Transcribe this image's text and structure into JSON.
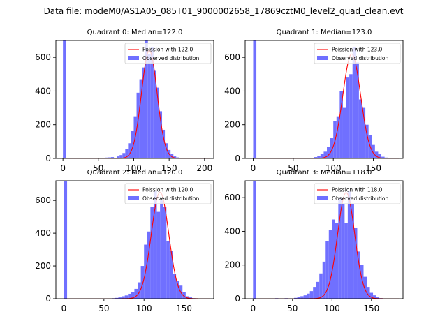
{
  "figure": {
    "suptitle": "Data file: modeM0/AS1A05_085T01_9000002658_17869cztM0_level2_quad_clean.evt"
  },
  "chart_data": [
    {
      "type": "bar",
      "title": "Quadrant 0: Median=122.0",
      "median": 122.0,
      "xlim": [
        -10,
        213
      ],
      "ylim": [
        0,
        700
      ],
      "xticks": [
        0,
        50,
        100,
        150,
        200
      ],
      "yticks": [
        0,
        200,
        400,
        600
      ],
      "legend_placement": "top-right",
      "legend": [
        {
          "label": "Poission with 122.0",
          "kind": "line",
          "color": "#ff0000"
        },
        {
          "label": "Observed distribution",
          "kind": "patch",
          "color": "#7070ff"
        }
      ],
      "histogram": {
        "bin_width": 4,
        "bin_starts": [
          0,
          56,
          60,
          64,
          68,
          72,
          76,
          80,
          84,
          88,
          92,
          96,
          100,
          104,
          108,
          112,
          116,
          120,
          124,
          128,
          132,
          136,
          140,
          144,
          148,
          152,
          156,
          160,
          164
        ],
        "counts": [
          700,
          3,
          5,
          6,
          8,
          4,
          12,
          20,
          32,
          55,
          90,
          165,
          250,
          390,
          470,
          540,
          700,
          620,
          660,
          520,
          420,
          280,
          170,
          90,
          50,
          25,
          12,
          6,
          3
        ]
      },
      "poisson_curve": {
        "mean": 122.0,
        "peak": 640,
        "x_range": [
          0,
          208
        ]
      }
    },
    {
      "type": "bar",
      "title": "Quadrant 1: Median=123.0",
      "median": 123.0,
      "xlim": [
        -10,
        187
      ],
      "ylim": [
        0,
        700
      ],
      "xticks": [
        0,
        50,
        100,
        150
      ],
      "yticks": [
        0,
        200,
        400,
        600
      ],
      "legend_placement": "top-right",
      "legend": [
        {
          "label": "Poission with 123.0",
          "kind": "line",
          "color": "#ff0000"
        },
        {
          "label": "Observed distribution",
          "kind": "patch",
          "color": "#7070ff"
        }
      ],
      "histogram": {
        "bin_width": 4,
        "bin_starts": [
          0,
          76,
          80,
          84,
          88,
          92,
          96,
          100,
          104,
          108,
          112,
          116,
          120,
          124,
          128,
          132,
          136,
          140,
          144,
          148,
          152,
          156,
          160,
          164
        ],
        "counts": [
          700,
          8,
          15,
          25,
          40,
          70,
          120,
          220,
          250,
          400,
          300,
          480,
          500,
          660,
          570,
          350,
          300,
          200,
          140,
          80,
          40,
          25,
          10,
          5
        ]
      },
      "poisson_curve": {
        "mean": 123.0,
        "peak": 620,
        "x_range": [
          0,
          182
        ]
      }
    },
    {
      "type": "bar",
      "title": "Quadrant 2: Median=120.0",
      "median": 120.0,
      "xlim": [
        -10,
        187
      ],
      "ylim": [
        0,
        720
      ],
      "xticks": [
        0,
        50,
        100,
        150
      ],
      "yticks": [
        0,
        200,
        400,
        600
      ],
      "legend_placement": "top-right",
      "legend": [
        {
          "label": "Poission with 120.0",
          "kind": "line",
          "color": "#ff0000"
        },
        {
          "label": "Observed distribution",
          "kind": "patch",
          "color": "#7070ff"
        }
      ],
      "histogram": {
        "bin_width": 4,
        "bin_starts": [
          0,
          60,
          64,
          68,
          72,
          76,
          80,
          84,
          88,
          92,
          96,
          100,
          104,
          108,
          112,
          116,
          120,
          124,
          128,
          132,
          136,
          140,
          144,
          148,
          152,
          156,
          160
        ],
        "counts": [
          720,
          3,
          5,
          8,
          15,
          20,
          30,
          40,
          60,
          100,
          200,
          330,
          410,
          560,
          660,
          530,
          600,
          560,
          350,
          290,
          150,
          110,
          80,
          40,
          15,
          8,
          3
        ]
      },
      "poisson_curve": {
        "mean": 120.0,
        "peak": 650,
        "x_range": [
          0,
          182
        ]
      }
    },
    {
      "type": "bar",
      "title": "Quadrant 3: Median=118.0",
      "median": 118.0,
      "xlim": [
        -10,
        190
      ],
      "ylim": [
        0,
        700
      ],
      "xticks": [
        0,
        50,
        100,
        150
      ],
      "yticks": [
        0,
        200,
        400,
        600
      ],
      "legend_placement": "top-right",
      "legend": [
        {
          "label": "Poission with 118.0",
          "kind": "line",
          "color": "#ff0000"
        },
        {
          "label": "Observed distribution",
          "kind": "patch",
          "color": "#7070ff"
        }
      ],
      "histogram": {
        "bin_width": 4,
        "bin_starts": [
          0,
          28,
          40,
          52,
          56,
          60,
          64,
          68,
          72,
          76,
          80,
          84,
          88,
          92,
          96,
          100,
          104,
          108,
          112,
          116,
          120,
          124,
          128,
          132,
          136,
          140,
          144,
          148,
          152,
          156,
          160
        ],
        "counts": [
          700,
          3,
          3,
          5,
          10,
          15,
          20,
          30,
          45,
          70,
          100,
          150,
          220,
          340,
          410,
          470,
          450,
          600,
          560,
          450,
          640,
          560,
          420,
          280,
          200,
          130,
          70,
          35,
          20,
          8,
          3
        ]
      },
      "poisson_curve": {
        "mean": 118.0,
        "peak": 630,
        "x_range": [
          0,
          185
        ]
      }
    }
  ]
}
